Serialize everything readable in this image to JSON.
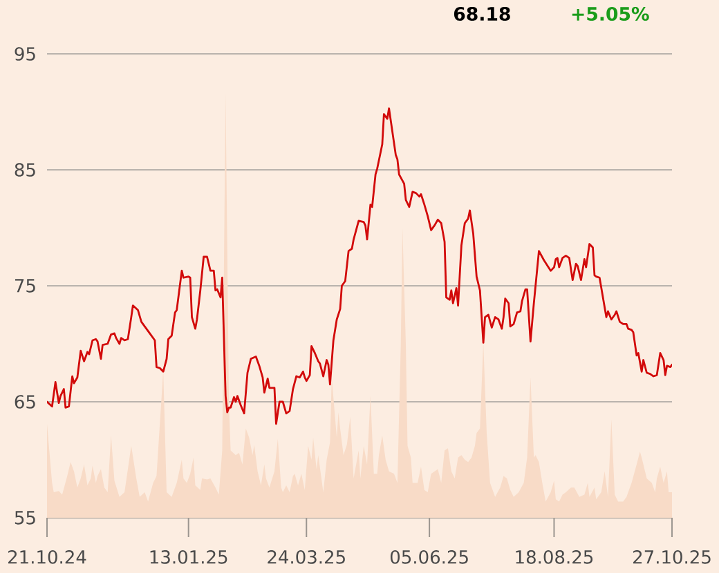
{
  "chart_data": {
    "type": "line",
    "annotations": [
      "68.18",
      "+5.05%"
    ],
    "xlim": [
      "2024-10-21",
      "2025-10-27"
    ],
    "xticks": [
      {
        "value": "2024-10-21",
        "label": "21.10.24"
      },
      {
        "value": "2025-01-13",
        "label": "13.01.25"
      },
      {
        "value": "2025-03-24",
        "label": "24.03.25"
      },
      {
        "value": "2025-06-05",
        "label": "05.06.25"
      },
      {
        "value": "2025-08-18",
        "label": "18.08.25"
      },
      {
        "value": "2025-10-27",
        "label": "27.10.25"
      }
    ],
    "ylim": [
      55,
      95
    ],
    "yticks": [
      55,
      65,
      75,
      85,
      95
    ],
    "grid": "y",
    "series": [
      {
        "type": "area",
        "color": "#f8dbc7",
        "x": [
          "2024-10-21",
          "2024-10-24",
          "2024-10-25",
          "2024-10-28",
          "2024-10-30",
          "2024-11-02",
          "2024-11-04",
          "2024-11-06",
          "2024-11-08",
          "2024-11-10",
          "2024-11-12",
          "2024-11-14",
          "2024-11-16",
          "2024-11-17",
          "2024-11-19",
          "2024-11-20",
          "2024-11-22",
          "2024-11-24",
          "2024-11-26",
          "2024-11-28",
          "2024-11-30",
          "2024-12-03",
          "2024-12-06",
          "2024-12-08",
          "2024-12-10",
          "2024-12-13",
          "2024-12-15",
          "2024-12-18",
          "2024-12-20",
          "2024-12-23",
          "2024-12-25",
          "2024-12-29",
          "2024-12-31",
          "2025-01-03",
          "2025-01-06",
          "2025-01-09",
          "2025-01-10",
          "2025-01-12",
          "2025-01-14",
          "2025-01-16",
          "2025-01-17",
          "2025-01-20",
          "2025-01-21",
          "2025-01-24",
          "2025-01-26",
          "2025-01-29",
          "2025-01-31",
          "2025-02-02",
          "2025-02-04",
          "2025-02-06",
          "2025-02-07",
          "2025-02-10",
          "2025-02-12",
          "2025-02-14",
          "2025-02-16",
          "2025-02-18",
          "2025-02-20",
          "2025-02-21",
          "2025-02-23",
          "2025-02-25",
          "2025-02-27",
          "2025-02-28",
          "2025-03-02",
          "2025-03-05",
          "2025-03-07",
          "2025-03-09",
          "2025-03-10",
          "2025-03-12",
          "2025-03-14",
          "2025-03-16",
          "2025-03-17",
          "2025-03-19",
          "2025-03-21",
          "2025-03-23",
          "2025-03-25",
          "2025-03-27",
          "2025-03-28",
          "2025-03-30",
          "2025-03-31",
          "2025-04-03",
          "2025-04-05",
          "2025-04-07",
          "2025-04-08",
          "2025-04-11",
          "2025-04-12",
          "2025-04-13",
          "2025-04-15",
          "2025-04-17",
          "2025-04-19",
          "2025-04-21",
          "2025-04-24",
          "2025-04-25",
          "2025-04-27",
          "2025-04-29",
          "2025-05-01",
          "2025-05-03",
          "2025-05-05",
          "2025-05-06",
          "2025-05-08",
          "2025-05-10",
          "2025-05-12",
          "2025-05-15",
          "2025-05-17",
          "2025-05-19",
          "2025-05-20",
          "2025-05-22",
          "2025-05-23",
          "2025-05-25",
          "2025-05-26",
          "2025-05-29",
          "2025-05-31",
          "2025-06-02",
          "2025-06-04",
          "2025-06-06",
          "2025-06-08",
          "2025-06-10",
          "2025-06-12",
          "2025-06-14",
          "2025-06-16",
          "2025-06-18",
          "2025-06-20",
          "2025-06-22",
          "2025-06-24",
          "2025-06-26",
          "2025-06-28",
          "2025-06-30",
          "2025-07-02",
          "2025-07-03",
          "2025-07-05",
          "2025-07-07",
          "2025-07-09",
          "2025-07-11",
          "2025-07-14",
          "2025-07-17",
          "2025-07-19",
          "2025-07-21",
          "2025-07-23",
          "2025-07-25",
          "2025-07-28",
          "2025-07-31",
          "2025-08-02",
          "2025-08-04",
          "2025-08-06",
          "2025-08-07",
          "2025-08-09",
          "2025-08-11",
          "2025-08-13",
          "2025-08-16",
          "2025-08-18",
          "2025-08-19",
          "2025-08-21",
          "2025-08-23",
          "2025-08-25",
          "2025-08-28",
          "2025-08-30",
          "2025-09-02",
          "2025-09-05",
          "2025-09-07",
          "2025-09-08",
          "2025-09-11",
          "2025-09-12",
          "2025-09-15",
          "2025-09-17",
          "2025-09-19",
          "2025-09-21",
          "2025-09-23",
          "2025-09-25",
          "2025-09-28",
          "2025-09-30",
          "2025-10-03",
          "2025-10-06",
          "2025-10-08",
          "2025-10-09",
          "2025-10-12",
          "2025-10-15",
          "2025-10-17",
          "2025-10-18",
          "2025-10-20",
          "2025-10-22",
          "2025-10-24",
          "2025-10-25",
          "2025-10-27"
        ],
        "values": [
          63.1,
          58.0,
          57.2,
          57.3,
          57.0,
          58.6,
          59.8,
          59.0,
          57.6,
          58.4,
          59.6,
          57.8,
          58.4,
          59.5,
          58.0,
          58.6,
          59.2,
          57.6,
          57.2,
          62.1,
          58.2,
          56.8,
          57.2,
          59.2,
          61.2,
          58.4,
          56.8,
          57.2,
          56.4,
          58.0,
          58.6,
          67.7,
          57.2,
          56.8,
          58.0,
          60.0,
          58.4,
          58.0,
          58.8,
          60.2,
          57.8,
          57.4,
          58.4,
          58.3,
          58.4,
          57.6,
          57.0,
          60.8,
          91.6,
          64.7,
          60.8,
          60.4,
          60.6,
          59.6,
          62.7,
          61.9,
          60.4,
          61.3,
          59.0,
          57.8,
          59.6,
          58.4,
          57.6,
          59.0,
          61.8,
          57.6,
          57.2,
          57.8,
          57.2,
          58.6,
          58.8,
          57.8,
          58.8,
          57.4,
          61.2,
          60.0,
          61.9,
          59.2,
          60.4,
          57.2,
          60.0,
          61.5,
          67.1,
          61.9,
          64.1,
          62.7,
          60.4,
          61.3,
          63.7,
          58.4,
          60.8,
          58.4,
          61.2,
          59.6,
          65.5,
          58.8,
          58.8,
          60.4,
          62.1,
          60.0,
          59.0,
          58.8,
          58.0,
          69.9,
          80.0,
          69.9,
          61.2,
          60.2,
          58.0,
          58.0,
          59.4,
          57.4,
          57.2,
          58.8,
          59.0,
          59.2,
          58.0,
          60.8,
          61.0,
          59.0,
          58.4,
          60.2,
          60.4,
          60.0,
          59.8,
          60.2,
          61.2,
          62.3,
          62.7,
          70.1,
          62.3,
          58.0,
          56.8,
          57.6,
          58.6,
          58.4,
          57.4,
          56.8,
          57.2,
          58.0,
          60.2,
          67.1,
          60.2,
          60.4,
          59.8,
          58.0,
          56.4,
          57.2,
          58.2,
          56.6,
          56.4,
          57.0,
          57.2,
          57.6,
          57.6,
          56.8,
          57.0,
          58.0,
          56.8,
          57.6,
          56.6,
          57.2,
          59.0,
          56.8,
          63.5,
          57.0,
          56.4,
          56.4,
          56.8,
          58.0,
          59.6,
          60.7,
          60.2,
          58.4,
          58.0,
          57.2,
          58.4,
          59.4,
          58.0,
          59.0,
          57.2,
          57.2
        ]
      },
      {
        "color": "#d20a0a",
        "x": [
          "2024-10-21",
          "2024-10-24",
          "2024-10-26",
          "2024-10-28",
          "2024-10-29",
          "2024-10-31",
          "2024-11-01",
          "2024-11-03",
          "2024-11-05",
          "2024-11-06",
          "2024-11-08",
          "2024-11-10",
          "2024-11-12",
          "2024-11-14",
          "2024-11-15",
          "2024-11-17",
          "2024-11-19",
          "2024-11-20",
          "2024-11-22",
          "2024-11-23",
          "2024-11-26",
          "2024-11-28",
          "2024-11-30",
          "2024-12-01",
          "2024-12-03",
          "2024-12-04",
          "2024-12-06",
          "2024-12-08",
          "2024-12-10",
          "2024-12-11",
          "2024-12-14",
          "2024-12-16",
          "2024-12-18",
          "2024-12-21",
          "2024-12-24",
          "2024-12-25",
          "2024-12-27",
          "2024-12-29",
          "2024-12-31",
          "2025-01-01",
          "2025-01-03",
          "2025-01-05",
          "2025-01-06",
          "2025-01-09",
          "2025-01-10",
          "2025-01-13",
          "2025-01-14",
          "2025-01-15",
          "2025-01-17",
          "2025-01-18",
          "2025-01-20",
          "2025-01-22",
          "2025-01-24",
          "2025-01-26",
          "2025-01-28",
          "2025-01-29",
          "2025-01-30",
          "2025-02-01",
          "2025-02-02",
          "2025-02-04",
          "2025-02-05",
          "2025-02-06",
          "2025-02-07",
          "2025-02-09",
          "2025-02-10",
          "2025-02-11",
          "2025-02-13",
          "2025-02-15",
          "2025-02-17",
          "2025-02-19",
          "2025-02-22",
          "2025-02-24",
          "2025-02-26",
          "2025-02-27",
          "2025-03-01",
          "2025-03-02",
          "2025-03-05",
          "2025-03-06",
          "2025-03-08",
          "2025-03-10",
          "2025-03-12",
          "2025-03-14",
          "2025-03-16",
          "2025-03-18",
          "2025-03-20",
          "2025-03-22",
          "2025-03-23",
          "2025-03-24",
          "2025-03-26",
          "2025-03-27",
          "2025-03-29",
          "2025-03-31",
          "2025-04-01",
          "2025-04-03",
          "2025-04-05",
          "2025-04-06",
          "2025-04-07",
          "2025-04-09",
          "2025-04-11",
          "2025-04-13",
          "2025-04-14",
          "2025-04-16",
          "2025-04-18",
          "2025-04-20",
          "2025-04-21",
          "2025-04-24",
          "2025-04-27",
          "2025-04-28",
          "2025-04-29",
          "2025-05-01",
          "2025-05-02",
          "2025-05-04",
          "2025-05-05",
          "2025-05-08",
          "2025-05-09",
          "2025-05-11",
          "2025-05-12",
          "2025-05-16",
          "2025-05-17",
          "2025-05-18",
          "2025-05-21",
          "2025-05-22",
          "2025-05-24",
          "2025-05-26",
          "2025-05-28",
          "2025-05-30",
          "2025-05-31",
          "2025-06-02",
          "2025-06-04",
          "2025-06-06",
          "2025-06-08",
          "2025-06-10",
          "2025-06-12",
          "2025-06-14",
          "2025-06-15",
          "2025-06-17",
          "2025-06-18",
          "2025-06-19",
          "2025-06-21",
          "2025-06-22",
          "2025-06-24",
          "2025-06-26",
          "2025-06-28",
          "2025-06-29",
          "2025-07-01",
          "2025-07-03",
          "2025-07-05",
          "2025-07-07",
          "2025-07-08",
          "2025-07-10",
          "2025-07-12",
          "2025-07-14",
          "2025-07-16",
          "2025-07-18",
          "2025-07-19",
          "2025-07-20",
          "2025-07-22",
          "2025-07-23",
          "2025-07-25",
          "2025-07-27",
          "2025-07-29",
          "2025-07-30",
          "2025-08-01",
          "2025-08-02",
          "2025-08-04",
          "2025-08-06",
          "2025-08-09",
          "2025-08-12",
          "2025-08-16",
          "2025-08-18",
          "2025-08-19",
          "2025-08-20",
          "2025-08-21",
          "2025-08-23",
          "2025-08-25",
          "2025-08-27",
          "2025-08-29",
          "2025-08-31",
          "2025-09-01",
          "2025-09-03",
          "2025-09-05",
          "2025-09-06",
          "2025-09-08",
          "2025-09-10",
          "2025-09-11",
          "2025-09-12",
          "2025-09-14",
          "2025-09-18",
          "2025-09-19",
          "2025-09-21",
          "2025-09-23",
          "2025-09-24",
          "2025-09-26",
          "2025-09-28",
          "2025-09-30",
          "2025-10-01",
          "2025-10-03",
          "2025-10-04",
          "2025-10-06",
          "2025-10-07",
          "2025-10-09",
          "2025-10-10",
          "2025-10-12",
          "2025-10-14",
          "2025-10-16",
          "2025-10-18",
          "2025-10-20",
          "2025-10-22",
          "2025-10-23",
          "2025-10-24",
          "2025-10-26",
          "2025-10-27"
        ],
        "values": [
          65.0,
          64.6,
          66.7,
          64.9,
          65.5,
          66.1,
          64.5,
          64.6,
          67.2,
          66.6,
          67.1,
          69.4,
          68.5,
          69.3,
          69.1,
          70.3,
          70.4,
          70.2,
          68.7,
          69.9,
          70.0,
          70.8,
          70.9,
          70.5,
          70.0,
          70.5,
          70.3,
          70.4,
          72.3,
          73.3,
          72.9,
          71.9,
          71.5,
          70.9,
          70.3,
          68.0,
          67.9,
          67.6,
          68.7,
          70.4,
          70.7,
          72.7,
          72.9,
          76.3,
          75.7,
          75.8,
          75.7,
          72.3,
          71.3,
          72.1,
          74.6,
          77.5,
          77.5,
          76.3,
          76.3,
          74.6,
          74.7,
          74.0,
          75.7,
          65.5,
          64.1,
          64.5,
          64.5,
          65.4,
          65.0,
          65.5,
          64.7,
          64.0,
          67.5,
          68.7,
          68.9,
          68.1,
          67.1,
          65.8,
          67.0,
          66.2,
          66.2,
          63.1,
          65.0,
          65.0,
          64.0,
          64.2,
          66.1,
          67.2,
          67.1,
          67.6,
          67.1,
          66.8,
          67.3,
          69.8,
          69.2,
          68.5,
          68.3,
          67.2,
          68.6,
          68.2,
          66.5,
          70.3,
          72.1,
          73.0,
          75.0,
          75.4,
          78.0,
          78.2,
          79.0,
          80.6,
          80.5,
          80.2,
          79.0,
          82.0,
          81.8,
          84.6,
          85.1,
          87.2,
          89.8,
          89.4,
          90.3,
          86.3,
          85.9,
          84.6,
          83.8,
          82.4,
          81.8,
          83.1,
          83.0,
          82.7,
          82.9,
          82.0,
          81.0,
          79.8,
          80.2,
          80.7,
          80.4,
          78.8,
          74.0,
          73.8,
          74.6,
          73.5,
          74.8,
          73.3,
          78.5,
          80.4,
          80.8,
          81.5,
          79.5,
          75.8,
          74.6,
          70.1,
          72.3,
          72.5,
          71.4,
          72.3,
          72.1,
          71.3,
          72.3,
          73.9,
          73.5,
          71.5,
          71.7,
          72.7,
          72.8,
          73.7,
          74.7,
          74.7,
          70.2,
          73.5,
          78.0,
          77.2,
          76.3,
          76.6,
          77.3,
          77.4,
          76.6,
          77.4,
          77.6,
          77.4,
          75.5,
          76.9,
          76.7,
          75.5,
          77.3,
          76.6,
          78.6,
          78.3,
          75.9,
          75.8,
          75.7,
          72.3,
          72.8,
          72.1,
          72.5,
          72.8,
          71.9,
          71.7,
          71.7,
          71.3,
          71.2,
          71.0,
          69.0,
          69.2,
          67.6,
          68.6,
          67.5,
          67.4,
          67.2,
          67.3,
          69.2,
          68.6,
          67.3,
          68.1,
          68.0,
          68.2
        ]
      }
    ]
  }
}
